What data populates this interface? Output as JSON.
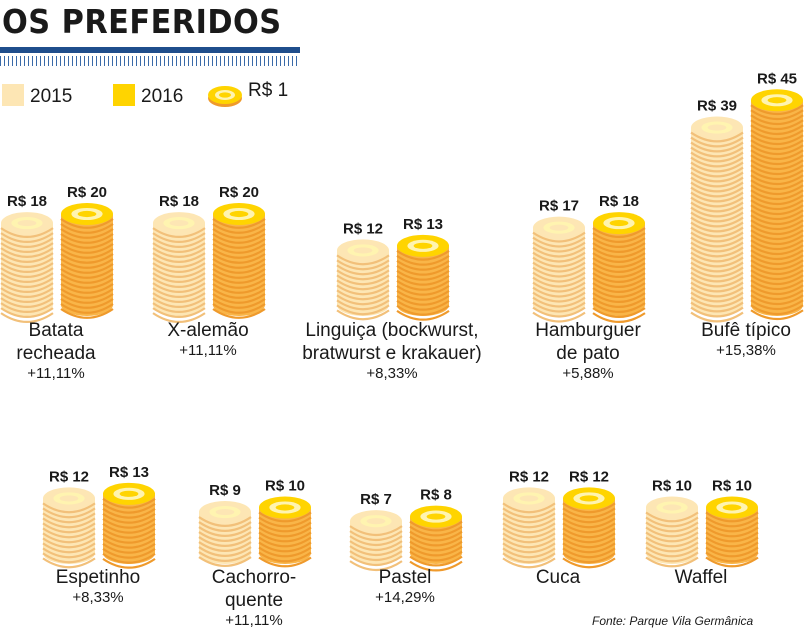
{
  "title": "OS PREFERIDOS",
  "legend": {
    "y2015": "2015",
    "y2016": "2016",
    "coin": "R$ 1"
  },
  "colors": {
    "coin_2015_light": "#fde6b4",
    "coin_2015_stripe": "#f2c07a",
    "coin_2016_light": "#f9b548",
    "coin_2016_stripe": "#ef9a2c",
    "coin_top": "#ffd400",
    "title_bar": "#1f4e8c"
  },
  "source": "Fonte: Parque Vila Germânica",
  "chart_data": {
    "type": "bar",
    "title": "OS PREFERIDOS",
    "unit": "R$",
    "series_names": [
      "2015",
      "2016"
    ],
    "items": [
      {
        "name": [
          "Batata",
          "recheada"
        ],
        "v2015": 18,
        "v2016": 20,
        "l2015": "R$ 18",
        "l2016": "R$ 20",
        "change": "+11,11%"
      },
      {
        "name": [
          "X-alemão"
        ],
        "v2015": 18,
        "v2016": 20,
        "l2015": "R$ 18",
        "l2016": "R$ 20",
        "change": "+11,11%"
      },
      {
        "name": [
          "Linguiça (bockwurst,",
          "bratwurst e krakauer)"
        ],
        "v2015": 12,
        "v2016": 13,
        "l2015": "R$ 12",
        "l2016": "R$ 13",
        "change": "+8,33%"
      },
      {
        "name": [
          "Hamburguer",
          "de pato"
        ],
        "v2015": 17,
        "v2016": 18,
        "l2015": "R$ 17",
        "l2016": "R$ 18",
        "change": "+5,88%"
      },
      {
        "name": [
          "Bufê típico"
        ],
        "v2015": 39,
        "v2016": 45,
        "l2015": "R$ 39",
        "l2016": "R$ 45",
        "change": "+15,38%"
      },
      {
        "name": [
          "Espetinho"
        ],
        "v2015": 12,
        "v2016": 13,
        "l2015": "R$ 12",
        "l2016": "R$ 13",
        "change": "+8,33%"
      },
      {
        "name": [
          "Cachorro-",
          "quente"
        ],
        "v2015": 9,
        "v2016": 10,
        "l2015": "R$ 9",
        "l2016": "R$ 10",
        "change": "+11,11%"
      },
      {
        "name": [
          "Pastel"
        ],
        "v2015": 7,
        "v2016": 8,
        "l2015": "R$ 7",
        "l2016": "R$ 8",
        "change": "+14,29%"
      },
      {
        "name": [
          "Cuca"
        ],
        "v2015": 12,
        "v2016": 12,
        "l2015": "R$ 12",
        "l2016": "R$ 12",
        "change": ""
      },
      {
        "name": [
          "Waffel"
        ],
        "v2015": 10,
        "v2016": 10,
        "l2015": "R$ 10",
        "l2016": "R$ 10",
        "change": ""
      }
    ]
  }
}
